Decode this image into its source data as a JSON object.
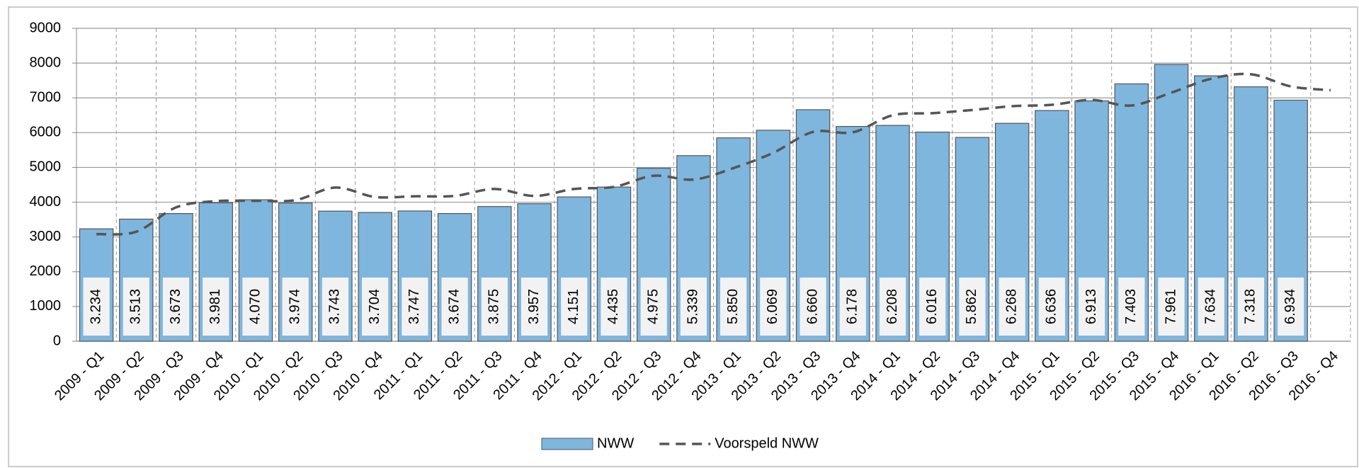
{
  "chart_data": {
    "type": "bar",
    "categories": [
      "2009 - Q1",
      "2009 - Q2",
      "2009 - Q3",
      "2009 - Q4",
      "2010 - Q1",
      "2010 - Q2",
      "2010 - Q3",
      "2010 - Q4",
      "2011 - Q1",
      "2011 - Q2",
      "2011 - Q3",
      "2011 - Q4",
      "2012 - Q1",
      "2012 - Q2",
      "2012 - Q3",
      "2012 - Q4",
      "2013 - Q1",
      "2013 - Q2",
      "2013 - Q3",
      "2013 - Q4",
      "2014 - Q1",
      "2014 - Q2",
      "2014 - Q3",
      "2014 - Q4",
      "2015 - Q1",
      "2015 - Q2",
      "2015 - Q3",
      "2015 - Q4",
      "2016 - Q1",
      "2016 - Q2",
      "2016 - Q3",
      "2016 - Q4"
    ],
    "series": [
      {
        "name": "NWW",
        "type": "bar",
        "color": "#7eb6de",
        "values": [
          3234,
          3513,
          3673,
          3981,
          4070,
          3974,
          3743,
          3704,
          3747,
          3674,
          3875,
          3957,
          4151,
          4435,
          4975,
          5339,
          5850,
          6069,
          6660,
          6178,
          6208,
          6016,
          5862,
          6268,
          6636,
          6913,
          7403,
          7961,
          7634,
          7318,
          6934,
          null
        ],
        "value_labels": [
          "3.234",
          "3.513",
          "3.673",
          "3.981",
          "4.070",
          "3.974",
          "3.743",
          "3.704",
          "3.747",
          "3.674",
          "3.875",
          "3.957",
          "4.151",
          "4.435",
          "4.975",
          "5.339",
          "5.850",
          "6.069",
          "6.660",
          "6.178",
          "6.208",
          "6.016",
          "5.862",
          "6.268",
          "6.636",
          "6.913",
          "7.403",
          "7.961",
          "7.634",
          "7.318",
          "6.934",
          null
        ]
      },
      {
        "name": "Voorspeld NWW",
        "type": "line",
        "color": "#555555",
        "dashed": true,
        "values": [
          3080,
          3150,
          3850,
          4030,
          4040,
          4060,
          4420,
          4150,
          4170,
          4180,
          4380,
          4180,
          4380,
          4440,
          4760,
          4650,
          4980,
          5420,
          6020,
          6010,
          6500,
          6560,
          6650,
          6760,
          6800,
          6940,
          6780,
          7150,
          7550,
          7680,
          7330,
          7220
        ]
      }
    ],
    "ylim": [
      0,
      9000
    ],
    "yticks": [
      0,
      1000,
      2000,
      3000,
      4000,
      5000,
      6000,
      7000,
      8000,
      9000
    ],
    "grid": true,
    "legend": "bottom"
  }
}
